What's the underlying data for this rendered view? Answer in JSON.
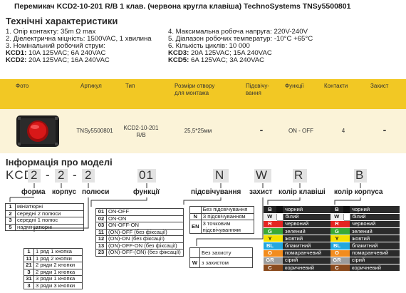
{
  "title": "Перемикач KCD2-10-201 R/B 1 клав. (червона кругла клавіша) TechnoSystems TNSy5500801",
  "tech": {
    "heading": "Технічні характеристики",
    "left": [
      "1. Опір контакту: 35m Ω  max",
      "2. Діелектрична міцність:  1500VAC, 1 хвилина",
      "3. Номінальний робочий струм:"
    ],
    "left_kcd1_k": "KCD1:",
    "left_kcd1_v": " 10A 125VAC; 6A 240VAC",
    "left_kcd2_k": "KCD2:",
    "left_kcd2_v": " 20A 125VAC; 16A 240VAC",
    "right": [
      "4. Максимальна робоча напруга: 220V-240V",
      "5. Діапазон робочих температур: -10°C +65°C",
      "6. Кількість циклів: 10 000"
    ],
    "right_kcd3_k": "KCD3:",
    "right_kcd3_v": " 20A 125VAC; 15A 240VAC",
    "right_kcd5_k": "KCD5:",
    "right_kcd5_v": " 6A 125VAC; 3A 240VAC"
  },
  "table": {
    "headers": {
      "photo": "Фото",
      "article": "Артикул",
      "type": "Тип",
      "size": "Розміри отвору для монтажа",
      "light": "Підсвічу-вання",
      "func": "Функції",
      "contacts": "Контакти",
      "protect": "Захист"
    },
    "row": {
      "article": "TNSy5500801",
      "type": "KCD2-10-201 R/B",
      "size": "25,5*25мм",
      "light": "-",
      "func": "ON - OFF",
      "contacts": "4",
      "protect": "-"
    }
  },
  "model": {
    "heading": "Інформація про моделі",
    "prefix": "KCD",
    "c1": "2",
    "c2": "2",
    "c3": "2",
    "c4": "01",
    "c5": "N",
    "c6": "W",
    "c7": "R",
    "c8": "B",
    "dash": "-",
    "labels": {
      "forma": "форма",
      "korpus": "корпус",
      "polusy": "полюси",
      "funktsii": "функції",
      "pidsv": "підсвічування",
      "zakhyst": "захист",
      "kolir_klav": "колір клавіші",
      "kolir_korp": "колір корпуса"
    }
  },
  "forms": [
    {
      "k": "1",
      "v": "мініатюрні"
    },
    {
      "k": "2",
      "v": "середні 2 полюси"
    },
    {
      "k": "3",
      "v": "середні 1 полюс"
    },
    {
      "k": "5",
      "v": "надмініатюрні"
    }
  ],
  "functions": [
    {
      "k": "01",
      "v": "ON-OFF"
    },
    {
      "k": "02",
      "v": "ON-ON"
    },
    {
      "k": "03",
      "v": "ON-OFF-ON"
    },
    {
      "k": "11",
      "v": "(ON)-OFF (без фіксації)"
    },
    {
      "k": "12",
      "v": "(ON)-ON (без фіксації)"
    },
    {
      "k": "13",
      "v": "(ON)-OFF-ON (без фіксації)"
    },
    {
      "k": "23",
      "v": "(ON)-OFF-(ON) (без фіксації)"
    }
  ],
  "rows": [
    {
      "k": "1",
      "v": "1 ряд 1 кнопка"
    },
    {
      "k": "11",
      "v": "1 ряд 2 кнопки"
    },
    {
      "k": "21",
      "v": "2 ряди 2 кнопки"
    },
    {
      "k": "3",
      "v": "2 ряди 1 кнопка"
    },
    {
      "k": "31",
      "v": "3 ряди 1 кнопка"
    },
    {
      "k": "3",
      "v": "3 ряди 3 кнопки"
    }
  ],
  "lights": [
    {
      "k": "",
      "v": "Без підсвічування"
    },
    {
      "k": "N",
      "v": "З підсвічуванням"
    },
    {
      "k": "EN",
      "v": "3 точковим підсвічуванням"
    }
  ],
  "protection": [
    {
      "k": "",
      "v": "Без захисту"
    },
    {
      "k": "W",
      "v": "з захистом"
    }
  ],
  "colors": [
    {
      "k": "B",
      "v": "чорний",
      "c": "#111111"
    },
    {
      "k": "W",
      "v": "білий",
      "c": "#ffffff"
    },
    {
      "k": "R",
      "v": "червоний",
      "c": "#e52421"
    },
    {
      "k": "G",
      "v": "зелений",
      "c": "#3aa935"
    },
    {
      "k": "Y",
      "v": "жовтий",
      "c": "#f5e100"
    },
    {
      "k": "BL",
      "v": "блакитний",
      "c": "#23a7de"
    },
    {
      "k": "O",
      "v": "помаранчевий",
      "c": "#f28c1e"
    },
    {
      "k": "GR",
      "v": "сірий",
      "c": "#9b9b9b"
    },
    {
      "k": "C",
      "v": "коричневий",
      "c": "#8a4b1e"
    }
  ],
  "colors_accent": {
    "yellow": "#f2c824",
    "row_bg": "#fbf3d8",
    "code_box": "#e3e3e3"
  }
}
